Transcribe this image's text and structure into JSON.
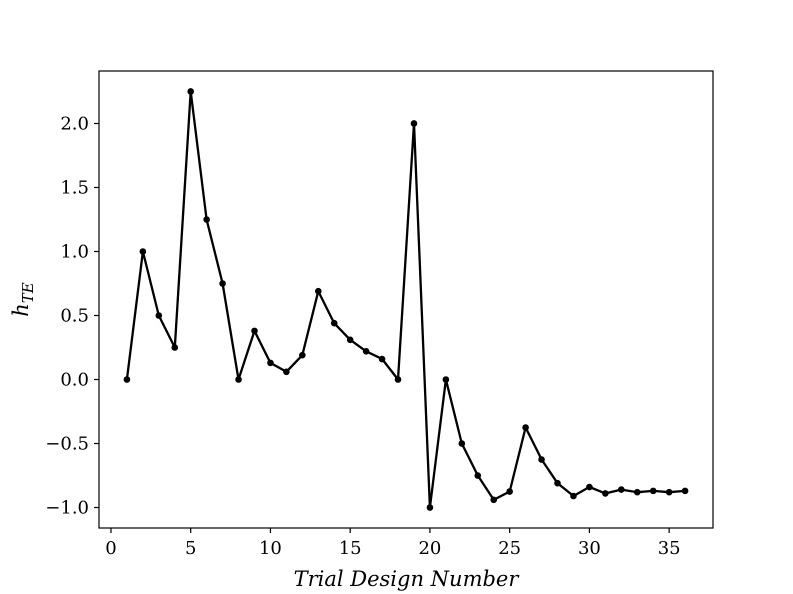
{
  "chart_data": {
    "type": "line",
    "title": "",
    "xlabel": "Trial Design Number",
    "ylabel_main": "h",
    "ylabel_sub": "TE",
    "xlim": [
      -0.75,
      37.75
    ],
    "ylim": [
      -1.16,
      2.41
    ],
    "xticks": [
      0,
      5,
      10,
      15,
      20,
      25,
      30,
      35
    ],
    "xtick_labels": [
      "0",
      "5",
      "10",
      "15",
      "20",
      "25",
      "30",
      "35"
    ],
    "yticks": [
      -1.0,
      -0.5,
      0.0,
      0.5,
      1.0,
      1.5,
      2.0
    ],
    "ytick_labels": [
      "−1.0",
      "−0.5",
      "0.0",
      "0.5",
      "1.0",
      "1.5",
      "2.0"
    ],
    "grid": false,
    "series": [
      {
        "color": "#000000",
        "marker": "circle",
        "x": [
          1,
          2,
          3,
          4,
          5,
          6,
          7,
          8,
          9,
          10,
          11,
          12,
          13,
          14,
          15,
          16,
          17,
          18,
          19,
          20,
          21,
          22,
          23,
          24,
          25,
          26,
          27,
          28,
          29,
          30,
          31,
          32,
          33,
          34,
          35,
          36
        ],
        "y": [
          0.0,
          1.0,
          0.5,
          0.25,
          2.25,
          1.25,
          0.75,
          0.0,
          0.38,
          0.13,
          0.06,
          0.19,
          0.69,
          0.44,
          0.31,
          0.22,
          0.16,
          0.0,
          2.0,
          -1.0,
          0.0,
          -0.5,
          -0.75,
          -0.94,
          -0.875,
          -0.375,
          -0.625,
          -0.81,
          -0.91,
          -0.84,
          -0.89,
          -0.86,
          -0.88,
          -0.87,
          -0.88,
          -0.87
        ]
      }
    ]
  }
}
